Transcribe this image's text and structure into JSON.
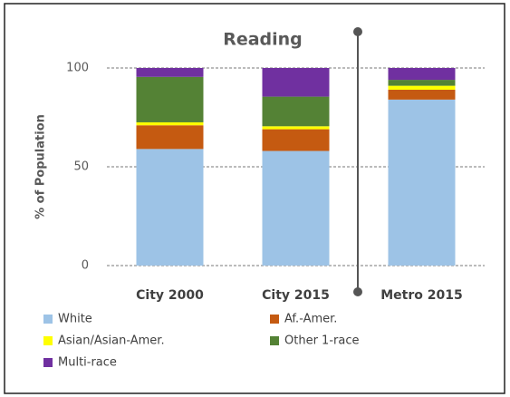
{
  "chart_data": {
    "type": "stacked_bar",
    "title": "Reading",
    "y_label": "% of Population",
    "categories": [
      "City 2000",
      "City 2015",
      "Metro 2015"
    ],
    "series": [
      {
        "name": "White",
        "color": "#9dc3e6",
        "values": [
          59,
          58,
          84
        ]
      },
      {
        "name": "Af.-Amer.",
        "color": "#c55a11",
        "values": [
          12,
          11,
          5
        ]
      },
      {
        "name": "Asian/Asian-Amer.",
        "color": "#ffff00",
        "values": [
          1.5,
          1.5,
          2
        ]
      },
      {
        "name": "Other 1-race",
        "color": "#548235",
        "values": [
          23,
          15,
          3
        ]
      },
      {
        "name": "Multi-race",
        "color": "#7030a0",
        "values": [
          4.5,
          14.5,
          6
        ]
      }
    ],
    "ylim": [
      0,
      100
    ],
    "yticks": [
      0,
      50,
      100
    ],
    "grid": true,
    "legend": "bottom"
  }
}
